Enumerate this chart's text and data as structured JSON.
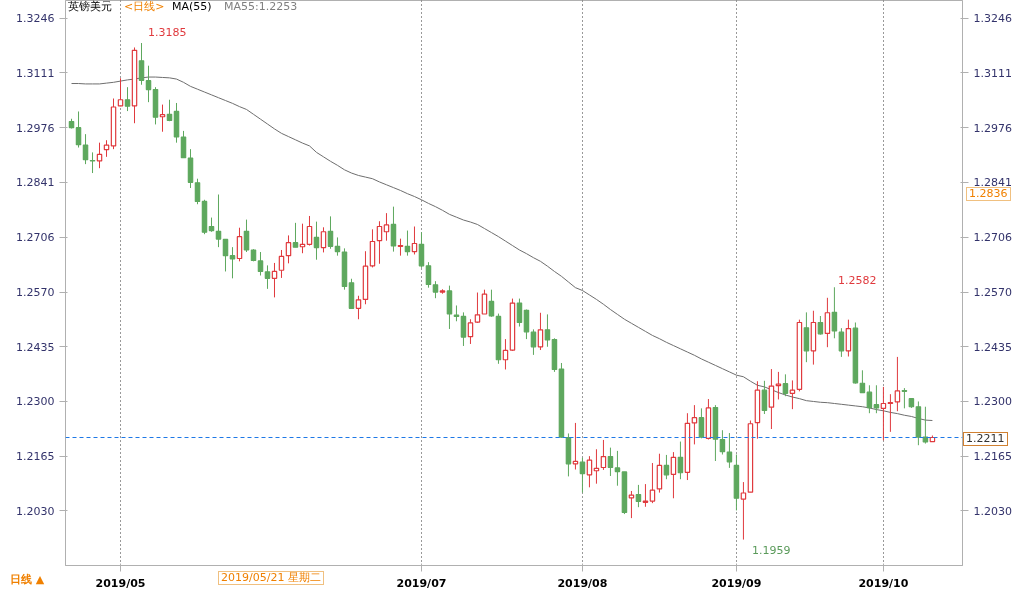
{
  "chart_data": {
    "type": "candlestick",
    "title": "英镑美元",
    "categories": [
      null,
      null,
      null,
      null,
      null,
      null,
      null,
      "2019/05",
      null,
      null,
      null,
      null,
      null,
      null,
      null,
      null,
      null,
      null,
      null,
      null,
      null,
      null,
      null,
      null,
      null,
      null,
      null,
      null,
      null,
      null,
      null,
      null,
      null,
      null,
      null,
      null,
      null,
      null,
      null,
      null,
      null,
      null,
      null,
      null,
      null,
      null,
      null,
      null,
      null,
      null,
      "2019/07",
      null,
      null,
      null,
      null,
      null,
      null,
      null,
      null,
      null,
      null,
      null,
      null,
      null,
      null,
      null,
      null,
      null,
      null,
      null,
      null,
      null,
      null,
      "2019/08",
      null,
      null,
      null,
      null,
      null,
      null,
      null,
      null,
      null,
      null,
      null,
      null,
      null,
      null,
      null,
      null,
      null,
      null,
      null,
      null,
      null,
      "2019/09",
      null,
      null,
      null,
      null,
      null,
      null,
      null,
      null,
      null,
      null,
      null,
      null,
      null,
      null,
      null,
      null,
      null,
      null,
      null,
      null,
      "2019/10",
      null,
      null,
      null,
      null,
      null,
      null,
      null
    ],
    "ohlc": [
      [
        1.2991,
        1.2998,
        1.2974,
        1.2976
      ],
      [
        1.2976,
        1.3016,
        1.2927,
        1.2934
      ],
      [
        1.2933,
        1.296,
        1.2886,
        1.2897
      ],
      [
        1.2895,
        1.2915,
        1.2864,
        1.2894
      ],
      [
        1.2894,
        1.2939,
        1.2876,
        1.291
      ],
      [
        1.2922,
        1.2945,
        1.2904,
        1.2933
      ],
      [
        1.2931,
        1.3048,
        1.2923,
        1.3027
      ],
      [
        1.303,
        1.3098,
        1.3029,
        1.3045
      ],
      [
        1.3045,
        1.3076,
        1.3017,
        1.3029
      ],
      [
        1.303,
        1.3174,
        1.2987,
        1.3167
      ],
      [
        1.3141,
        1.3185,
        1.3082,
        1.3093
      ],
      [
        1.3092,
        1.3129,
        1.3039,
        1.307
      ],
      [
        1.307,
        1.3076,
        1.2984,
        1.3002
      ],
      [
        1.3003,
        1.3033,
        1.2966,
        1.3008
      ],
      [
        1.3009,
        1.3045,
        1.2992,
        1.2994
      ],
      [
        1.3016,
        1.3037,
        1.2939,
        1.2953
      ],
      [
        1.2953,
        1.2968,
        1.2902,
        1.2902
      ],
      [
        1.2901,
        1.2923,
        1.2827,
        1.2841
      ],
      [
        1.284,
        1.285,
        1.2787,
        1.2794
      ],
      [
        1.2794,
        1.2798,
        1.2713,
        1.2718
      ],
      [
        1.2732,
        1.2754,
        1.2719,
        1.2722
      ],
      [
        1.272,
        1.2811,
        1.2681,
        1.2701
      ],
      [
        1.27,
        1.2701,
        1.2621,
        1.266
      ],
      [
        1.266,
        1.2681,
        1.2604,
        1.2652
      ],
      [
        1.2653,
        1.2729,
        1.2646,
        1.2707
      ],
      [
        1.272,
        1.2749,
        1.2669,
        1.2674
      ],
      [
        1.2674,
        1.2676,
        1.2646,
        1.2648
      ],
      [
        1.2647,
        1.2669,
        1.2611,
        1.2621
      ],
      [
        1.262,
        1.2636,
        1.2578,
        1.2604
      ],
      [
        1.2604,
        1.2642,
        1.2557,
        1.2621
      ],
      [
        1.2624,
        1.2674,
        1.2605,
        1.2658
      ],
      [
        1.266,
        1.271,
        1.2641,
        1.2692
      ],
      [
        1.2692,
        1.2741,
        1.2681,
        1.2681
      ],
      [
        1.2682,
        1.2739,
        1.2666,
        1.2688
      ],
      [
        1.2688,
        1.2758,
        1.2685,
        1.2732
      ],
      [
        1.2705,
        1.2744,
        1.265,
        1.268
      ],
      [
        1.268,
        1.273,
        1.2668,
        1.2719
      ],
      [
        1.272,
        1.2757,
        1.2677,
        1.2683
      ],
      [
        1.2683,
        1.2705,
        1.266,
        1.267
      ],
      [
        1.2669,
        1.2678,
        1.2576,
        1.2584
      ],
      [
        1.2593,
        1.2603,
        1.253,
        1.253
      ],
      [
        1.253,
        1.2561,
        1.2503,
        1.2551
      ],
      [
        1.2552,
        1.2671,
        1.254,
        1.2634
      ],
      [
        1.2635,
        1.2725,
        1.2631,
        1.2695
      ],
      [
        1.2697,
        1.2745,
        1.264,
        1.2732
      ],
      [
        1.2719,
        1.2765,
        1.2697,
        1.2736
      ],
      [
        1.2737,
        1.2781,
        1.267,
        1.2684
      ],
      [
        1.2683,
        1.2702,
        1.266,
        1.2685
      ],
      [
        1.2683,
        1.2722,
        1.266,
        1.267
      ],
      [
        1.267,
        1.2732,
        1.2663,
        1.269
      ],
      [
        1.2688,
        1.2718,
        1.263,
        1.2635
      ],
      [
        1.2635,
        1.2644,
        1.2581,
        1.2589
      ],
      [
        1.2588,
        1.2597,
        1.2555,
        1.257
      ],
      [
        1.257,
        1.2577,
        1.2566,
        1.2573
      ],
      [
        1.2573,
        1.2586,
        1.2479,
        1.2516
      ],
      [
        1.2513,
        1.2537,
        1.2498,
        1.251
      ],
      [
        1.251,
        1.252,
        1.2437,
        1.2459
      ],
      [
        1.246,
        1.2503,
        1.2442,
        1.2494
      ],
      [
        1.2496,
        1.2569,
        1.2494,
        1.2514
      ],
      [
        1.2516,
        1.2576,
        1.2516,
        1.2565
      ],
      [
        1.2547,
        1.2576,
        1.2509,
        1.2511
      ],
      [
        1.251,
        1.2517,
        1.2393,
        1.2403
      ],
      [
        1.2403,
        1.2454,
        1.2379,
        1.2426
      ],
      [
        1.2427,
        1.2554,
        1.2425,
        1.2543
      ],
      [
        1.2543,
        1.2554,
        1.2485,
        1.2495
      ],
      [
        1.2525,
        1.2527,
        1.2454,
        1.2472
      ],
      [
        1.2471,
        1.2478,
        1.2415,
        1.2435
      ],
      [
        1.2435,
        1.2519,
        1.2427,
        1.2477
      ],
      [
        1.2477,
        1.2515,
        1.2435,
        1.2452
      ],
      [
        1.2453,
        1.2456,
        1.2373,
        1.2379
      ],
      [
        1.238,
        1.2395,
        1.221,
        1.2212
      ],
      [
        1.2211,
        1.2221,
        1.2115,
        1.2146
      ],
      [
        1.2146,
        1.2247,
        1.2132,
        1.2152
      ],
      [
        1.215,
        1.2161,
        1.2075,
        1.2122
      ],
      [
        1.2119,
        1.2165,
        1.2088,
        1.2155
      ],
      [
        1.2129,
        1.2182,
        1.2097,
        1.2135
      ],
      [
        1.2137,
        1.2205,
        1.2131,
        1.2164
      ],
      [
        1.2164,
        1.2186,
        1.2116,
        1.2137
      ],
      [
        1.2136,
        1.2178,
        1.2092,
        1.2127
      ],
      [
        1.2126,
        1.2126,
        1.2022,
        1.2026
      ],
      [
        1.2062,
        1.2079,
        1.2012,
        1.2069
      ],
      [
        1.207,
        1.2094,
        1.2039,
        1.2053
      ],
      [
        1.2051,
        1.2096,
        1.204,
        1.2054
      ],
      [
        1.2054,
        1.2148,
        1.2049,
        1.2081
      ],
      [
        1.2084,
        1.2171,
        1.2075,
        1.2142
      ],
      [
        1.2142,
        1.2168,
        1.2108,
        1.2119
      ],
      [
        1.212,
        1.2175,
        1.2061,
        1.2162
      ],
      [
        1.2162,
        1.2201,
        1.2108,
        1.2124
      ],
      [
        1.2125,
        1.2271,
        1.2106,
        1.2246
      ],
      [
        1.2247,
        1.2291,
        1.2194,
        1.226
      ],
      [
        1.226,
        1.2283,
        1.2209,
        1.2212
      ],
      [
        1.2209,
        1.2306,
        1.2206,
        1.2284
      ],
      [
        1.2285,
        1.2291,
        1.2153,
        1.2207
      ],
      [
        1.2206,
        1.2229,
        1.2169,
        1.2176
      ],
      [
        1.2175,
        1.2222,
        1.2136,
        1.2151
      ],
      [
        1.2142,
        1.2169,
        1.2031,
        1.2061
      ],
      [
        1.2059,
        1.2101,
        1.1959,
        1.2074
      ],
      [
        1.2076,
        1.2253,
        1.2076,
        1.2245
      ],
      [
        1.2248,
        1.235,
        1.2208,
        1.2328
      ],
      [
        1.2328,
        1.2351,
        1.2269,
        1.2278
      ],
      [
        1.2286,
        1.238,
        1.2232,
        1.2338
      ],
      [
        1.2339,
        1.2373,
        1.2305,
        1.2343
      ],
      [
        1.2344,
        1.2367,
        1.2313,
        1.232
      ],
      [
        1.232,
        1.2352,
        1.2281,
        1.2328
      ],
      [
        1.233,
        1.2502,
        1.2325,
        1.2495
      ],
      [
        1.2482,
        1.252,
        1.2397,
        1.2425
      ],
      [
        1.2425,
        1.2524,
        1.2391,
        1.2495
      ],
      [
        1.2495,
        1.2511,
        1.2465,
        1.2467
      ],
      [
        1.2468,
        1.2556,
        1.2434,
        1.2519
      ],
      [
        1.252,
        1.2582,
        1.2456,
        1.2474
      ],
      [
        1.2471,
        1.2481,
        1.241,
        1.2425
      ],
      [
        1.2425,
        1.2502,
        1.2411,
        1.248
      ],
      [
        1.2481,
        1.2495,
        1.2344,
        1.2346
      ],
      [
        1.2345,
        1.2377,
        1.2322,
        1.2322
      ],
      [
        1.2323,
        1.234,
        1.2271,
        1.2285
      ],
      [
        1.2292,
        1.234,
        1.2271,
        1.2284
      ],
      [
        1.2283,
        1.2336,
        1.2204,
        1.2295
      ],
      [
        1.2295,
        1.2318,
        1.2225,
        1.2297
      ],
      [
        1.2299,
        1.241,
        1.2276,
        1.2326
      ],
      [
        1.2327,
        1.2333,
        1.2283,
        1.2325
      ],
      [
        1.2307,
        1.2307,
        1.2284,
        1.2287
      ],
      [
        1.2287,
        1.23,
        1.2192,
        1.2212
      ],
      [
        1.2212,
        1.2287,
        1.2196,
        1.22
      ],
      [
        1.2201,
        1.2216,
        1.2201,
        1.2211
      ]
    ],
    "series": [
      {
        "type": "line",
        "color": "#6e6e6e",
        "values": [
          1.3085,
          1.3085,
          1.3084,
          1.3084,
          1.3084,
          1.3086,
          1.3088,
          1.3091,
          1.3094,
          1.3096,
          1.3099,
          1.3101,
          1.3101,
          1.31,
          1.3099,
          1.3096,
          1.3088,
          1.3078,
          1.3071,
          1.3064,
          1.3057,
          1.305,
          1.3043,
          1.3036,
          1.3028,
          1.3021,
          1.3009,
          1.2997,
          1.2985,
          1.2973,
          1.2962,
          1.2954,
          1.2946,
          1.2938,
          1.2931,
          1.2915,
          1.2904,
          1.2893,
          1.2883,
          1.2872,
          1.2864,
          1.2858,
          1.2854,
          1.285,
          1.2842,
          1.2835,
          1.2828,
          1.2821,
          1.2813,
          1.2806,
          1.2798,
          1.2789,
          1.2781,
          1.2772,
          1.2762,
          1.2755,
          1.2748,
          1.2743,
          1.2737,
          1.2727,
          1.2717,
          1.2707,
          1.2696,
          1.2685,
          1.2674,
          1.2665,
          1.2655,
          1.2646,
          1.2634,
          1.2621,
          1.2609,
          1.2595,
          1.2581,
          1.2574,
          1.2563,
          1.2552,
          1.254,
          1.2527,
          1.2515,
          1.2503,
          1.2493,
          1.2483,
          1.2473,
          1.2463,
          1.2455,
          1.2446,
          1.2438,
          1.243,
          1.2422,
          1.2414,
          1.2405,
          1.2397,
          1.2389,
          1.2381,
          1.2373,
          1.2365,
          1.2361,
          1.235,
          1.234,
          1.2336,
          1.2329,
          1.2322,
          1.2316,
          1.2311,
          1.2307,
          1.2302,
          1.23,
          1.2298,
          1.2297,
          1.2295,
          1.2293,
          1.2291,
          1.2289,
          1.2287,
          1.2284,
          1.228,
          1.2277,
          1.2273,
          1.227,
          1.2266,
          1.2263,
          1.2258,
          1.2254,
          1.2253
        ]
      }
    ],
    "ylim": [
      1.1895,
      1.329
    ],
    "yticks": [
      {
        "value": 1.203,
        "label": "1.2030"
      },
      1.2165,
      {
        "value": 1.23,
        "label": "1.2300"
      },
      1.2435,
      {
        "value": 1.257,
        "label": "1.2570"
      },
      1.2706,
      1.2841,
      1.2976,
      1.3111,
      1.3246
    ],
    "y2lim": [
      1.1895,
      1.329
    ],
    "y2ticks": [
      {
        "value": 1.203,
        "label": "1.2030"
      },
      1.2165,
      {
        "value": 1.23,
        "label": "1.2300"
      },
      1.2435,
      {
        "value": 1.257,
        "label": "1.2570"
      },
      1.2706,
      1.2841,
      1.2976,
      1.3111,
      1.3246
    ],
    "grid": "x",
    "ref_lines": [
      {
        "axis": "y",
        "value": 1.2211,
        "label": "1.2211",
        "color": "#1e78e6",
        "line_style": "dashed"
      }
    ],
    "annotations": [
      "<日线>",
      "MA(55)",
      "MA55:1.2253",
      "2019/05/21 星期二",
      "日线 ▲",
      "1.2836",
      "1.3185",
      "1.2582",
      "1.1959"
    ]
  }
}
